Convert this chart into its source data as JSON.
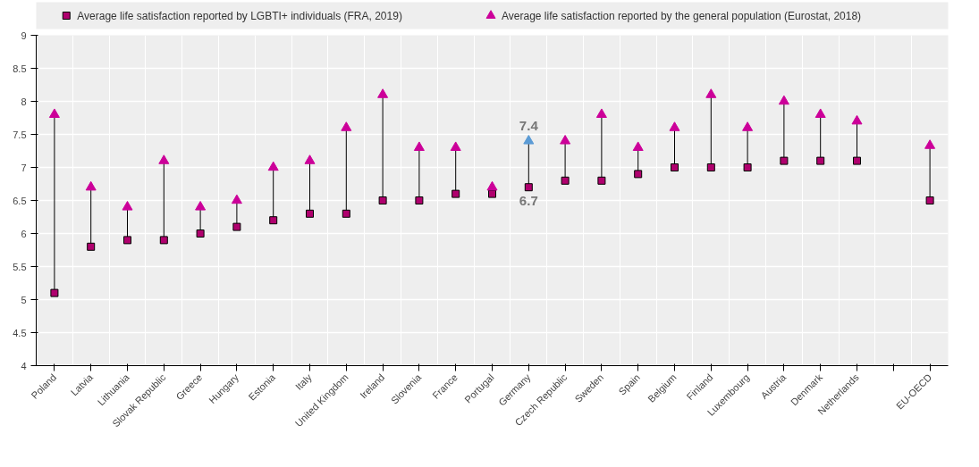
{
  "chart_data": {
    "type": "scatter",
    "categories": [
      "Poland",
      "Latvia",
      "Lithuania",
      "Slovak Republic",
      "Greece",
      "Hungary",
      "Estonia",
      "Italy",
      "United Kingdom",
      "Ireland",
      "Slovenia",
      "France",
      "Portugal",
      "Germany",
      "Czech Republic",
      "Sweden",
      "Spain",
      "Belgium",
      "Finland",
      "Luxembourg",
      "Austria",
      "Denmark",
      "Netherlands",
      null,
      "EU-OECD"
    ],
    "series": [
      {
        "name": "Average life satisfaction reported by LGBTI+ individuals (FRA, 2019)",
        "color": "#b0006e",
        "marker": "square",
        "values": [
          5.1,
          5.8,
          5.9,
          5.9,
          6.0,
          6.1,
          6.2,
          6.3,
          6.3,
          6.5,
          6.5,
          6.6,
          6.6,
          6.7,
          6.8,
          6.8,
          6.9,
          7.0,
          7.0,
          7.0,
          7.1,
          7.1,
          7.1,
          null,
          6.5
        ],
        "value_labels": [
          null,
          null,
          null,
          null,
          null,
          null,
          null,
          null,
          null,
          null,
          null,
          null,
          null,
          "6.7",
          null,
          null,
          null,
          null,
          null,
          null,
          null,
          null,
          null,
          null,
          null
        ]
      },
      {
        "name": "Average life satisfaction reported by the general population (Eurostat, 2018)",
        "color": "#cc0099",
        "marker": "triangle",
        "colors": [
          "#cc0099",
          "#cc0099",
          "#cc0099",
          "#cc0099",
          "#cc0099",
          "#cc0099",
          "#cc0099",
          "#cc0099",
          "#cc0099",
          "#cc0099",
          "#cc0099",
          "#cc0099",
          "#cc0099",
          "#5b9bd5",
          "#cc0099",
          "#cc0099",
          "#cc0099",
          "#cc0099",
          "#cc0099",
          "#cc0099",
          "#cc0099",
          "#cc0099",
          "#cc0099",
          "#cc0099",
          "#cc0099"
        ],
        "values": [
          7.8,
          6.7,
          6.4,
          7.1,
          6.4,
          6.5,
          7.0,
          7.1,
          7.6,
          8.1,
          7.3,
          7.3,
          6.7,
          7.4,
          7.4,
          7.8,
          7.3,
          7.6,
          8.1,
          7.6,
          8.0,
          7.8,
          7.7,
          null,
          7.33
        ],
        "value_labels": [
          null,
          null,
          null,
          null,
          null,
          null,
          null,
          null,
          null,
          null,
          null,
          null,
          null,
          "7.4",
          null,
          null,
          null,
          null,
          null,
          null,
          null,
          null,
          null,
          null,
          null
        ]
      }
    ],
    "ylim": [
      4,
      9
    ],
    "yticks": [
      4,
      4.5,
      5,
      5.5,
      6,
      6.5,
      7,
      7.5,
      8,
      8.5,
      9
    ],
    "grid": true,
    "legend": "top"
  }
}
